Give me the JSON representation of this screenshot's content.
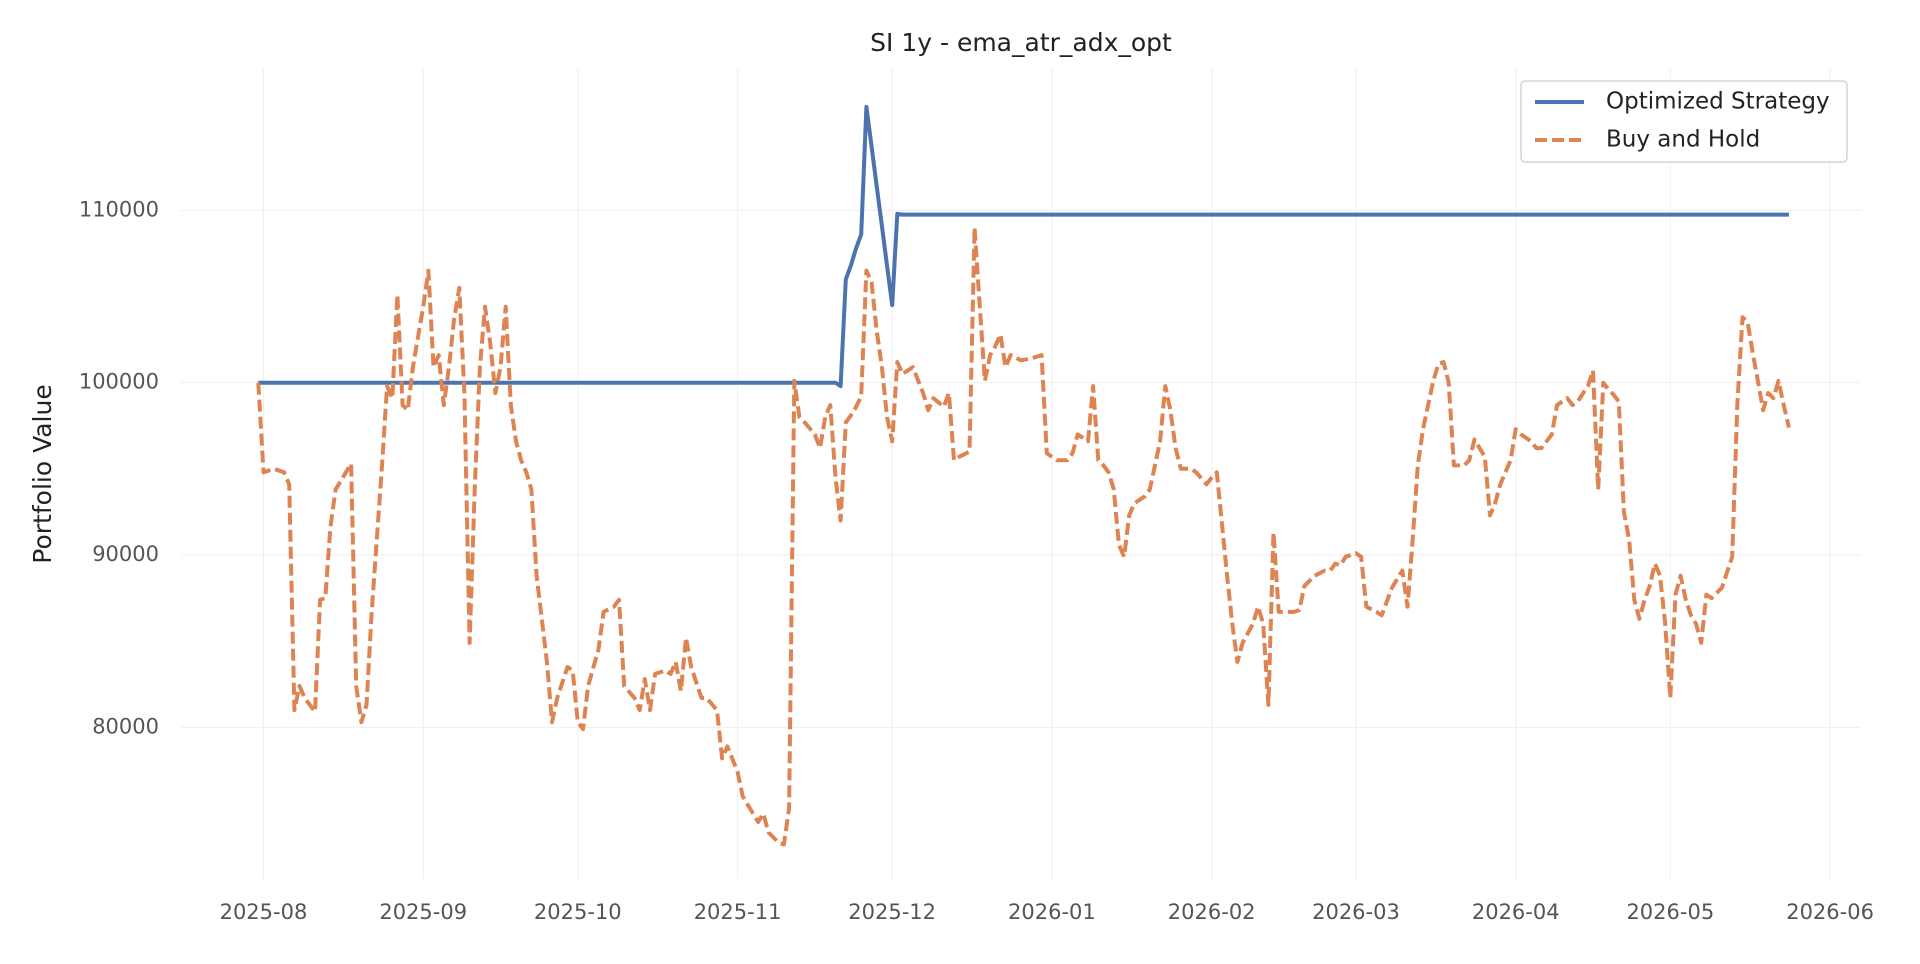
{
  "chart_data": {
    "type": "line",
    "title": "SI 1y - ema_atr_adx_opt",
    "ylabel": "Portfolio Value",
    "x": [
      20300,
      20301,
      20303,
      20305,
      20306,
      20307,
      20308,
      20309,
      20311,
      20312,
      20313,
      20314,
      20315,
      20318,
      20319,
      20320,
      20321,
      20322,
      20324,
      20325,
      20326,
      20327,
      20328,
      20329,
      20330,
      20332,
      20333,
      20334,
      20335,
      20336,
      20337,
      20338,
      20339,
      20340,
      20341,
      20342,
      20343,
      20344,
      20345,
      20346,
      20347,
      20348,
      20349,
      20350,
      20351,
      20352,
      20353,
      20354,
      20356,
      20357,
      20358,
      20360,
      20361,
      20362,
      20363,
      20364,
      20366,
      20367,
      20369,
      20370,
      20371,
      20373,
      20374,
      20375,
      20376,
      20377,
      20379,
      20380,
      20381,
      20382,
      20383,
      20384,
      20386,
      20387,
      20389,
      20390,
      20391,
      20393,
      20394,
      20396,
      20397,
      20398,
      20399,
      20401,
      20402,
      20403,
      20404,
      20405,
      20406,
      20408,
      20409,
      20410,
      20411,
      20412,
      20413,
      20414,
      20415,
      20416,
      20417,
      20418,
      20419,
      20420,
      20421,
      20422,
      20423,
      20424,
      20425,
      20427,
      20429,
      20430,
      20431,
      20433,
      20434,
      20435,
      20436,
      20438,
      20439,
      20440,
      20441,
      20442,
      20443,
      20444,
      20445,
      20446,
      20448,
      20450,
      20452,
      20453,
      20455,
      20457,
      20458,
      20459,
      20461,
      20462,
      20463,
      20464,
      20465,
      20466,
      20467,
      20468,
      20469,
      20470,
      20472,
      20473,
      20475,
      20476,
      20477,
      20478,
      20479,
      20481,
      20482,
      20484,
      20485,
      20486,
      20488,
      20489,
      20490,
      20491,
      20493,
      20494,
      20495,
      20496,
      20497,
      20498,
      20499,
      20501,
      20502,
      20503,
      20505,
      20507,
      20508,
      20509,
      20510,
      20511,
      20513,
      20514,
      20515,
      20517,
      20518,
      20520,
      20522,
      20523,
      20524,
      20525,
      20526,
      20527,
      20528,
      20529,
      20530,
      20531,
      20532,
      20534,
      20535,
      20536,
      20538,
      20539,
      20540,
      20541,
      20543,
      20544,
      20545,
      20547,
      20548,
      20549,
      20551,
      20552,
      20554,
      20555,
      20556,
      20558,
      20559,
      20560,
      20561,
      20562,
      20563,
      20564,
      20565,
      20566,
      20567,
      20568,
      20569,
      20570,
      20571,
      20572,
      20573,
      20574,
      20575,
      20576,
      20577,
      20578,
      20579,
      20580,
      20581,
      20582,
      20584,
      20586,
      20587,
      20588,
      20589,
      20590,
      20591,
      20592,
      20593,
      20594,
      20595,
      20596,
      20597
    ],
    "series": [
      {
        "name": "Optimized Strategy",
        "color": "#4c72b0",
        "linestyle": "solid",
        "values": [
          100000,
          100000,
          100000,
          100000,
          100000,
          100000,
          100000,
          100000,
          100000,
          100000,
          100000,
          100000,
          100000,
          100000,
          100000,
          100000,
          100000,
          100000,
          100000,
          100000,
          100000,
          100000,
          100000,
          100000,
          100000,
          100000,
          100000,
          100000,
          100000,
          100000,
          100000,
          100000,
          100000,
          100000,
          100000,
          100000,
          100000,
          100000,
          100000,
          100000,
          100000,
          100000,
          100000,
          100000,
          100000,
          100000,
          100000,
          100000,
          100000,
          100000,
          100000,
          100000,
          100000,
          100000,
          100000,
          100000,
          100000,
          100000,
          100000,
          100000,
          100000,
          100000,
          100000,
          100000,
          100000,
          100000,
          100000,
          100000,
          100000,
          100000,
          100000,
          100000,
          100000,
          100000,
          100000,
          100000,
          100000,
          100000,
          100000,
          100000,
          100000,
          100000,
          100000,
          100000,
          100000,
          100000,
          100000,
          100000,
          100000,
          100000,
          100000,
          100000,
          100000,
          100000,
          99800,
          106000,
          106800,
          107800,
          108600,
          116000,
          113700,
          111400,
          109100,
          106800,
          104500,
          109800,
          109750,
          109750,
          109750,
          109750,
          109750,
          109750,
          109750,
          109750,
          109750,
          109750,
          109750,
          109750,
          109750,
          109750,
          109750,
          109750,
          109750,
          109750,
          109750,
          109750,
          109750,
          109750,
          109750,
          109750,
          109750,
          109750,
          109750,
          109750,
          109750,
          109750,
          109750,
          109750,
          109750,
          109750,
          109750,
          109750,
          109750,
          109750,
          109750,
          109750,
          109750,
          109750,
          109750,
          109750,
          109750,
          109750,
          109750,
          109750,
          109750,
          109750,
          109750,
          109750,
          109750,
          109750,
          109750,
          109750,
          109750,
          109750,
          109750,
          109750,
          109750,
          109750,
          109750,
          109750,
          109750,
          109750,
          109750,
          109750,
          109750,
          109750,
          109750,
          109750,
          109750,
          109750,
          109750,
          109750,
          109750,
          109750,
          109750,
          109750,
          109750,
          109750,
          109750,
          109750,
          109750,
          109750,
          109750,
          109750,
          109750,
          109750,
          109750,
          109750,
          109750,
          109750,
          109750,
          109750,
          109750,
          109750,
          109750,
          109750,
          109750,
          109750,
          109750,
          109750,
          109750,
          109750,
          109750,
          109750,
          109750,
          109750,
          109750,
          109750,
          109750,
          109750,
          109750,
          109750,
          109750,
          109750,
          109750,
          109750,
          109750,
          109750,
          109750,
          109750,
          109750,
          109750,
          109750,
          109750,
          109750,
          109750,
          109750,
          109750,
          109750,
          109750,
          109750,
          109750,
          109750,
          109750,
          109750,
          109750,
          109750
        ]
      },
      {
        "name": "Buy and Hold",
        "color": "#dd8452",
        "linestyle": "dashed",
        "values": [
          100000,
          94800,
          95000,
          94800,
          94100,
          81000,
          82400,
          81700,
          80900,
          87400,
          87500,
          91600,
          93800,
          95300,
          82400,
          80300,
          81300,
          86700,
          95200,
          99800,
          99100,
          105100,
          98700,
          98400,
          100900,
          104400,
          106500,
          100900,
          101600,
          98700,
          100900,
          103700,
          105500,
          99400,
          84900,
          93800,
          100900,
          104400,
          102300,
          99400,
          100900,
          104400,
          98700,
          96600,
          95500,
          94800,
          93800,
          88800,
          83800,
          80300,
          81700,
          83500,
          83300,
          80300,
          79900,
          82400,
          84500,
          86700,
          87000,
          87400,
          82400,
          81700,
          81000,
          82800,
          81000,
          83100,
          83300,
          83100,
          83800,
          82100,
          85200,
          83500,
          81700,
          81700,
          81000,
          78200,
          78900,
          77400,
          76000,
          75000,
          74500,
          75000,
          73900,
          73300,
          73200,
          75300,
          100100,
          98000,
          97700,
          97000,
          96200,
          98000,
          98700,
          94500,
          92000,
          97700,
          98100,
          98600,
          99200,
          106500,
          105800,
          103000,
          100900,
          98000,
          96600,
          101200,
          100500,
          100900,
          99400,
          98400,
          99100,
          98600,
          99400,
          95500,
          95700,
          96000,
          109000,
          104400,
          100100,
          101600,
          102100,
          102800,
          100900,
          101600,
          101300,
          101400,
          101600,
          95900,
          95500,
          95500,
          95900,
          97000,
          96600,
          99800,
          95500,
          95200,
          94800,
          93800,
          90600,
          89900,
          92300,
          93000,
          93400,
          93800,
          96600,
          99800,
          98400,
          96200,
          95000,
          95000,
          94800,
          94100,
          94500,
          94800,
          88800,
          86000,
          83800,
          84900,
          86000,
          87000,
          86000,
          81300,
          91300,
          86700,
          86700,
          86700,
          86800,
          88200,
          88800,
          89100,
          89100,
          89500,
          89400,
          89900,
          90100,
          89900,
          87000,
          86700,
          86500,
          88100,
          89100,
          87000,
          90900,
          95200,
          97300,
          98700,
          100100,
          101100,
          101200,
          100000,
          95200,
          95200,
          95500,
          96700,
          95700,
          92300,
          93000,
          94100,
          95500,
          97300,
          97000,
          96600,
          96200,
          96200,
          97000,
          98700,
          99100,
          98700,
          98900,
          99800,
          100700,
          93800,
          100000,
          99600,
          99300,
          98900,
          92500,
          90900,
          87400,
          86300,
          87400,
          88200,
          89500,
          88800,
          86000,
          81700,
          87700,
          88800,
          87400,
          86500,
          86000,
          84900,
          87700,
          87500,
          88100,
          89900,
          98700,
          103800,
          103500,
          101700,
          100100,
          98400,
          99400,
          99100,
          100100,
          98700,
          97400
        ]
      }
    ],
    "xlim": [
      20285,
      20611
    ],
    "xticks": [
      {
        "value": 20301,
        "label": "2025-08"
      },
      {
        "value": 20332,
        "label": "2025-09"
      },
      {
        "value": 20362,
        "label": "2025-10"
      },
      {
        "value": 20393,
        "label": "2025-11"
      },
      {
        "value": 20423,
        "label": "2025-12"
      },
      {
        "value": 20454,
        "label": "2026-01"
      },
      {
        "value": 20485,
        "label": "2026-02"
      },
      {
        "value": 20513,
        "label": "2026-03"
      },
      {
        "value": 20544,
        "label": "2026-04"
      },
      {
        "value": 20574,
        "label": "2026-05"
      },
      {
        "value": 20605,
        "label": "2026-06"
      }
    ],
    "ylim": [
      71200,
      118200
    ],
    "yticks": [
      80000,
      90000,
      100000,
      110000
    ],
    "grid": true,
    "legend": "upper right"
  }
}
